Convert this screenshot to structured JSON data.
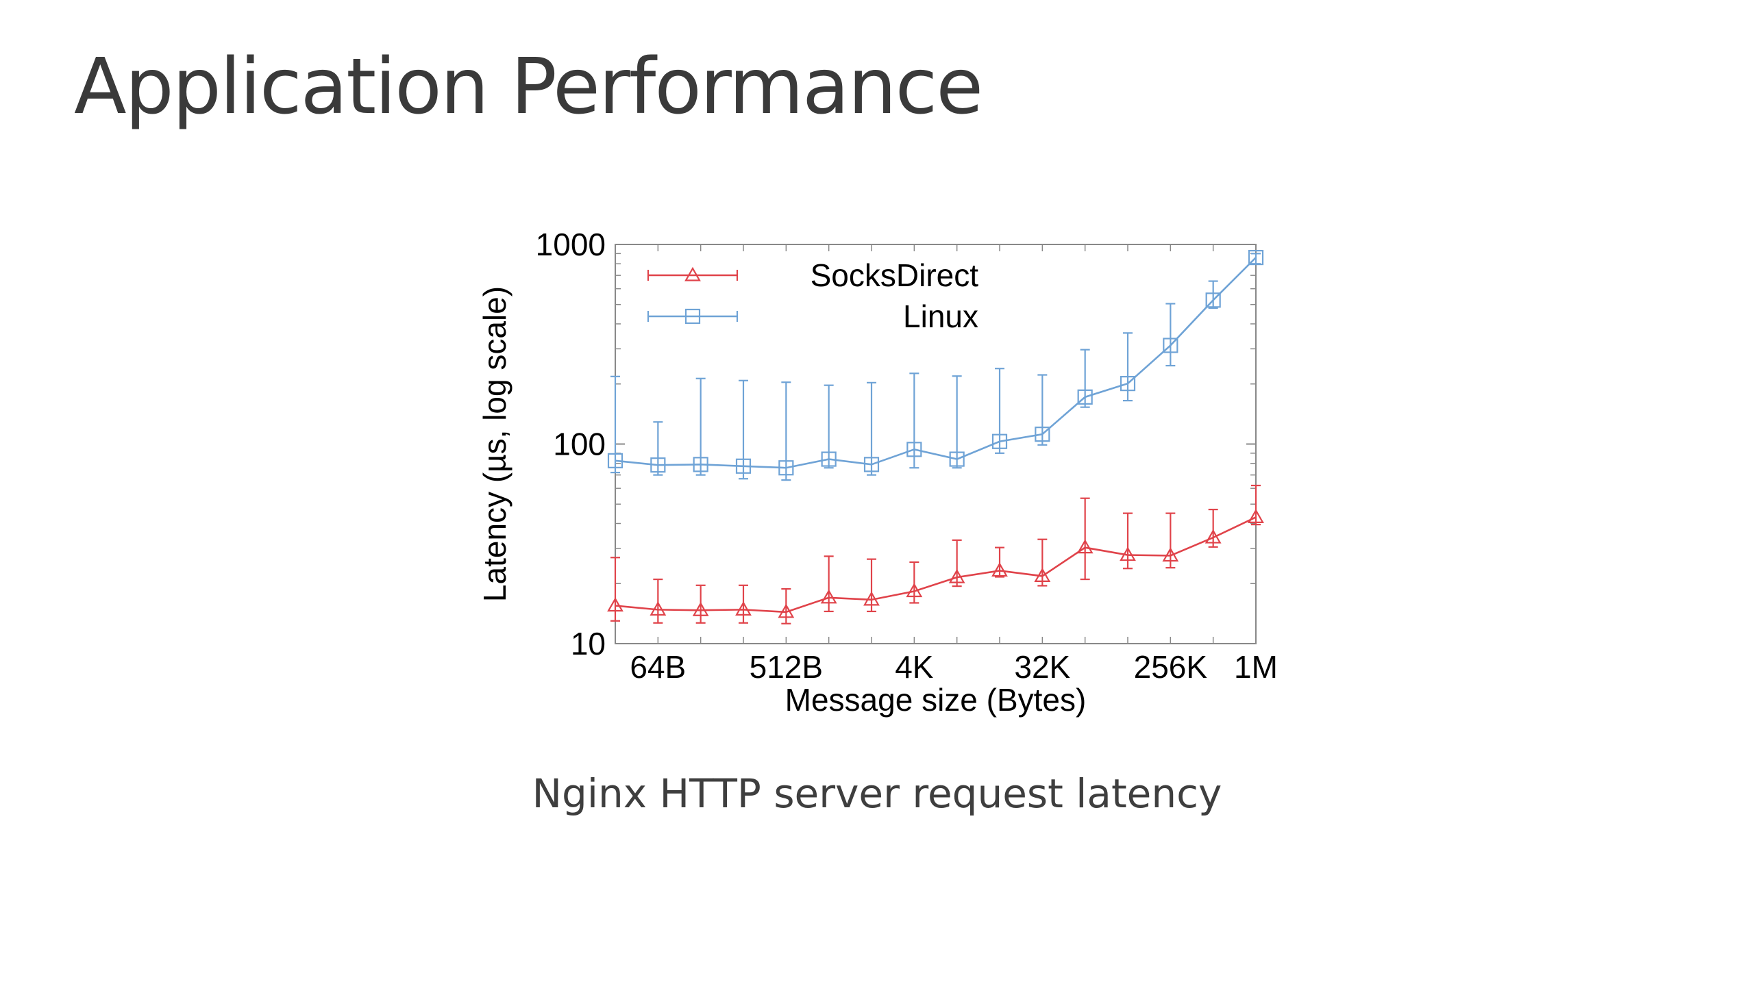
{
  "slide": {
    "title": "Application Performance",
    "caption": "Nginx HTTP server request latency"
  },
  "chart_data": {
    "type": "line",
    "title": "",
    "xlabel": "Message size (Bytes)",
    "ylabel": "Latency (µs, log scale)",
    "y_scale": "log",
    "ylim": [
      10,
      1000
    ],
    "y_ticks": [
      "10",
      "100",
      "1000"
    ],
    "x_tick_labels": [
      "64B",
      "512B",
      "4K",
      "32K",
      "256K",
      "1M"
    ],
    "x": [
      "32B",
      "64B",
      "128B",
      "256B",
      "512B",
      "1K",
      "2K",
      "4K",
      "8K",
      "16K",
      "32K",
      "64K",
      "128K",
      "256K",
      "512K",
      "1M"
    ],
    "grid": false,
    "legend_position": "top-left",
    "series": [
      {
        "name": "SocksDirect",
        "color": "#e0434a",
        "marker": "triangle",
        "values": [
          15.5,
          14.8,
          14.7,
          14.8,
          14.4,
          17,
          16.6,
          18.3,
          21.5,
          23.2,
          21.8,
          30.3,
          27.8,
          27.6,
          34,
          43
        ],
        "error_low": [
          13,
          12.7,
          12.7,
          12.7,
          12.6,
          14.5,
          14.5,
          16,
          19.4,
          21.6,
          19.5,
          21,
          23.8,
          24,
          30.5,
          39.5
        ],
        "error_high": [
          27,
          21,
          19.6,
          19.6,
          18.8,
          27.4,
          26.5,
          25.6,
          33,
          30.3,
          33.3,
          53.5,
          45,
          45,
          47,
          62
        ]
      },
      {
        "name": "Linux",
        "color": "#6fa3d6",
        "marker": "square",
        "values": [
          82.5,
          78.5,
          79,
          77.5,
          76,
          84,
          79,
          94,
          84,
          103,
          112,
          172,
          201,
          312,
          526,
          860
        ],
        "error_low": [
          72,
          70,
          70,
          67,
          66,
          76,
          70,
          76,
          76,
          90,
          99,
          153,
          165,
          247,
          480,
          800
        ],
        "error_high": [
          218,
          129,
          213,
          208,
          204,
          197,
          203,
          226,
          219,
          239,
          222,
          297,
          360,
          505,
          655,
          900
        ]
      }
    ]
  }
}
